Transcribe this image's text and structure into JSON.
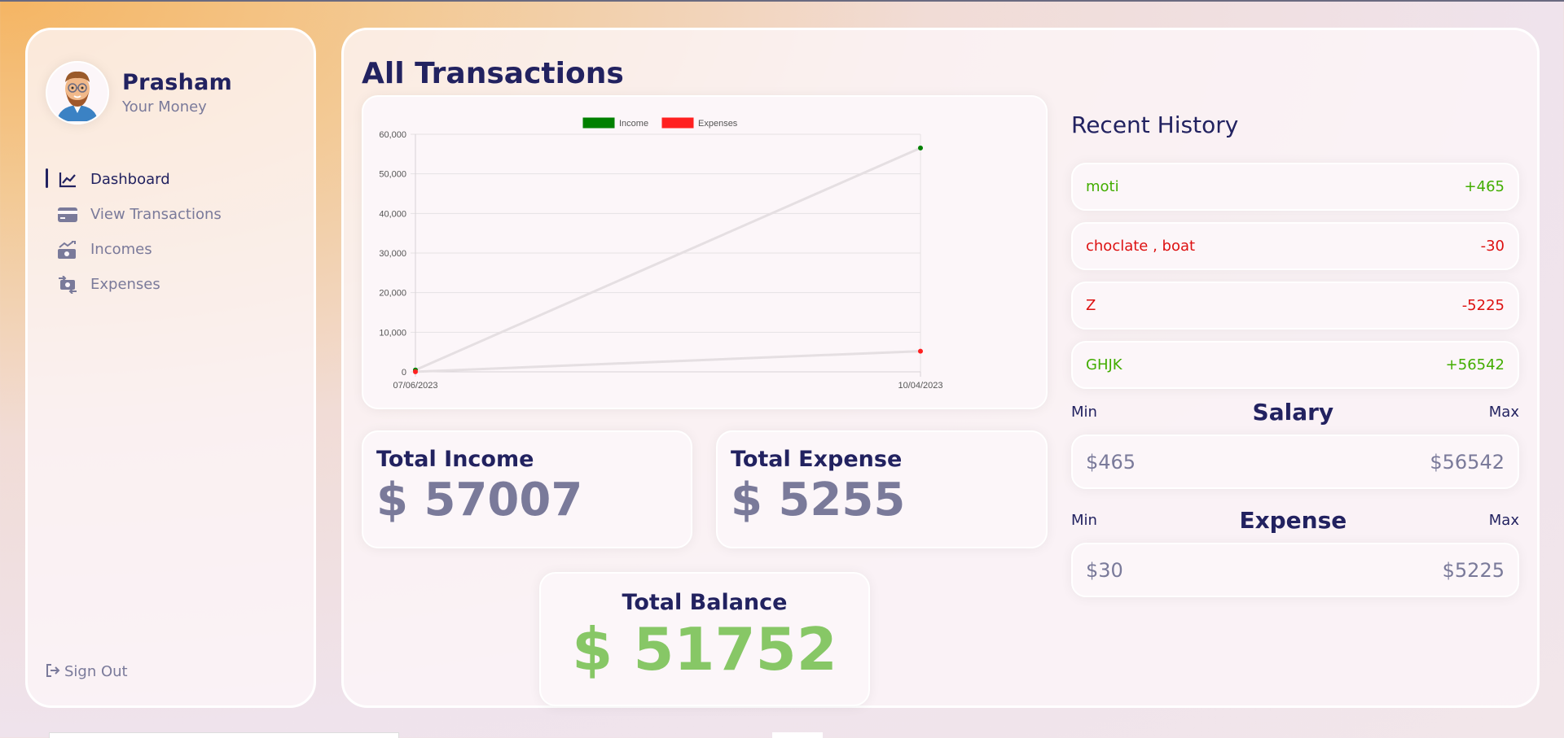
{
  "user": {
    "name": "Prasham",
    "subtitle": "Your Money"
  },
  "nav": [
    {
      "label": "Dashboard",
      "icon": "line-chart-icon",
      "active": true
    },
    {
      "label": "View Transactions",
      "icon": "credit-card-icon",
      "active": false
    },
    {
      "label": "Incomes",
      "icon": "money-trend-up-icon",
      "active": false
    },
    {
      "label": "Expenses",
      "icon": "money-exchange-icon",
      "active": false
    }
  ],
  "signout": {
    "label": "Sign Out"
  },
  "page_title": "All Transactions",
  "chart_data": {
    "type": "line",
    "x": [
      "07/06/2023",
      "10/04/2023"
    ],
    "series": [
      {
        "name": "Income",
        "color": "#008000",
        "values": [
          465,
          56542
        ]
      },
      {
        "name": "Expenses",
        "color": "#ff2020",
        "values": [
          30,
          5225
        ]
      }
    ],
    "ylim": [
      0,
      60000
    ],
    "yticks": [
      "0",
      "10,000",
      "20,000",
      "30,000",
      "40,000",
      "50,000",
      "60,000"
    ],
    "legend_position": "top",
    "grid": true,
    "line_color": "#e5dfe2"
  },
  "stats": {
    "income": {
      "title": "Total Income",
      "value": "$ 57007"
    },
    "expense": {
      "title": "Total Expense",
      "value": "$ 5255"
    },
    "balance": {
      "title": "Total Balance",
      "value": "$ 51752"
    }
  },
  "history": {
    "title": "Recent History",
    "items": [
      {
        "name": "moti",
        "amount": "+465",
        "type": "income"
      },
      {
        "name": "choclate , boat",
        "amount": "-30",
        "type": "expense"
      },
      {
        "name": "Z",
        "amount": "-5225",
        "type": "expense"
      },
      {
        "name": "GHJK",
        "amount": "+56542",
        "type": "income"
      }
    ]
  },
  "salary_range": {
    "min_label": "Min",
    "title": "Salary",
    "max_label": "Max",
    "min": "$465",
    "max": "$56542"
  },
  "expense_range": {
    "min_label": "Min",
    "title": "Expense",
    "max_label": "Max",
    "min": "$30",
    "max": "$5225"
  }
}
